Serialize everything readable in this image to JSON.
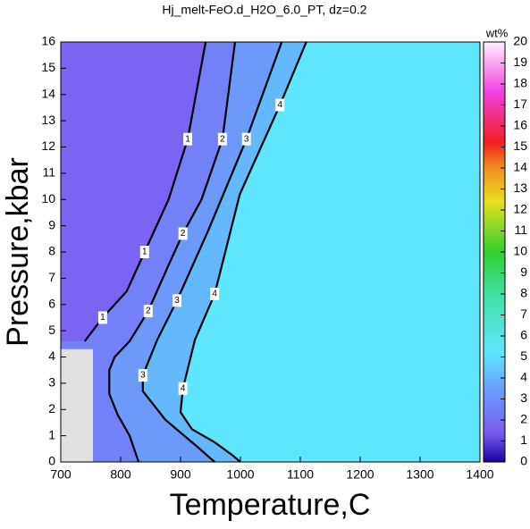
{
  "chart_data": {
    "type": "contour",
    "title": "Hj_melt-FeO.d_H2O_6.0_PT, dz=0.2",
    "x_label": "Temperature,C",
    "y_label": "Pressure,kbar",
    "xlim": [
      700,
      1400
    ],
    "xticks": [
      700,
      800,
      900,
      1000,
      1100,
      1200,
      1300,
      1400
    ],
    "ylim": [
      0,
      16
    ],
    "yticks": [
      0,
      1,
      2,
      3,
      4,
      5,
      6,
      7,
      8,
      9,
      10,
      11,
      12,
      13,
      14,
      15,
      16
    ],
    "contours": [
      {
        "level": 1,
        "x": [
          942,
          912,
          880,
          840,
          810,
          770,
          740
        ],
        "y": [
          16,
          12.3,
          10,
          8,
          6.5,
          5.5,
          4.6
        ]
      },
      {
        "level": 2,
        "x": [
          991,
          970,
          935,
          904,
          880,
          846,
          815,
          790,
          781,
          781,
          795,
          815,
          830
        ],
        "y": [
          16,
          12.3,
          10,
          8.7,
          7.5,
          5.75,
          4.6,
          4.0,
          3.5,
          2.6,
          1.8,
          1.0,
          0
        ]
      },
      {
        "level": 3,
        "x": [
          1069,
          1010,
          945,
          894,
          861,
          837,
          837,
          875,
          927,
          957
        ],
        "y": [
          16,
          12.3,
          8.75,
          6.15,
          4.65,
          3.3,
          2.7,
          1.6,
          0.6,
          0
        ]
      },
      {
        "level": 4,
        "x": [
          1110,
          1066,
          999,
          957,
          924,
          904,
          900,
          919,
          957,
          987,
          1000
        ],
        "y": [
          16,
          13.6,
          10.2,
          6.4,
          4.65,
          2.8,
          1.9,
          1.25,
          0.75,
          0.25,
          0
        ]
      }
    ],
    "colorbar": {
      "label": "wt%",
      "lim": [
        0,
        20
      ],
      "ticks": [
        0,
        1,
        2,
        3,
        4,
        5,
        6,
        7,
        8,
        9,
        10,
        11,
        12,
        13,
        14,
        15,
        16,
        17,
        18,
        19,
        20
      ]
    }
  }
}
